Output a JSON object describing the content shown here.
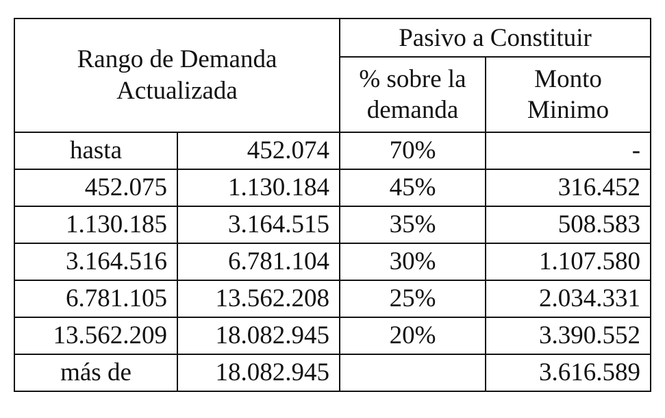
{
  "table": {
    "header": {
      "range_line1": "Rango de Demanda",
      "range_line2": "Actualizada",
      "group": "Pasivo a Constituir",
      "pct_line1": "% sobre la",
      "pct_line2": "demanda",
      "min_line1": "Monto",
      "min_line2": "Minimo"
    },
    "rows": [
      {
        "from": "hasta",
        "to": "452.074",
        "pct": "70%",
        "min": "-"
      },
      {
        "from": "452.075",
        "to": "1.130.184",
        "pct": "45%",
        "min": "316.452"
      },
      {
        "from": "1.130.185",
        "to": "3.164.515",
        "pct": "35%",
        "min": "508.583"
      },
      {
        "from": "3.164.516",
        "to": "6.781.104",
        "pct": "30%",
        "min": "1.107.580"
      },
      {
        "from": "6.781.105",
        "to": "13.562.208",
        "pct": "25%",
        "min": "2.034.331"
      },
      {
        "from": "13.562.209",
        "to": "18.082.945",
        "pct": "20%",
        "min": "3.390.552"
      },
      {
        "from": "más de",
        "to": "18.082.945",
        "pct": "",
        "min": "3.616.589"
      }
    ]
  }
}
